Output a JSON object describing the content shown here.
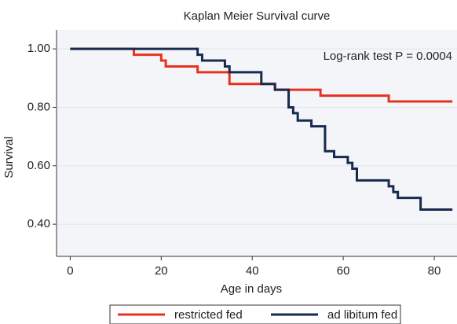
{
  "chart_data": {
    "type": "step",
    "title": "Kaplan Meier Survival curve",
    "annotation": "Log-rank test P = 0.0004",
    "xlabel": "Age in days",
    "ylabel": "Survival",
    "xlim": [
      -3,
      85
    ],
    "ylim": [
      0.29,
      1.065
    ],
    "xticks": [
      0,
      20,
      40,
      60,
      80
    ],
    "yticks": [
      {
        "value": 0.4,
        "label": "0.40"
      },
      {
        "value": 0.6,
        "label": "0.60"
      },
      {
        "value": 0.8,
        "label": "0.80"
      },
      {
        "value": 1.0,
        "label": "1.00"
      }
    ],
    "grid": true,
    "legend": "bottom",
    "series": [
      {
        "name": "restricted fed",
        "color": "#e8311f",
        "x": [
          0,
          14,
          20,
          21,
          28,
          35,
          45,
          55,
          70,
          84
        ],
        "values": [
          1.0,
          0.98,
          0.96,
          0.94,
          0.92,
          0.88,
          0.86,
          0.84,
          0.82,
          0.82
        ]
      },
      {
        "name": "ad libitum fed",
        "color": "#172a4f",
        "x": [
          0,
          28,
          29,
          34,
          35,
          42,
          45,
          48,
          49,
          50,
          53,
          56,
          58,
          61,
          62,
          63,
          70,
          71,
          72,
          77,
          84
        ],
        "values": [
          1.0,
          0.98,
          0.96,
          0.94,
          0.92,
          0.88,
          0.86,
          0.8,
          0.78,
          0.755,
          0.735,
          0.65,
          0.63,
          0.61,
          0.59,
          0.55,
          0.53,
          0.51,
          0.49,
          0.45,
          0.45
        ]
      }
    ]
  }
}
